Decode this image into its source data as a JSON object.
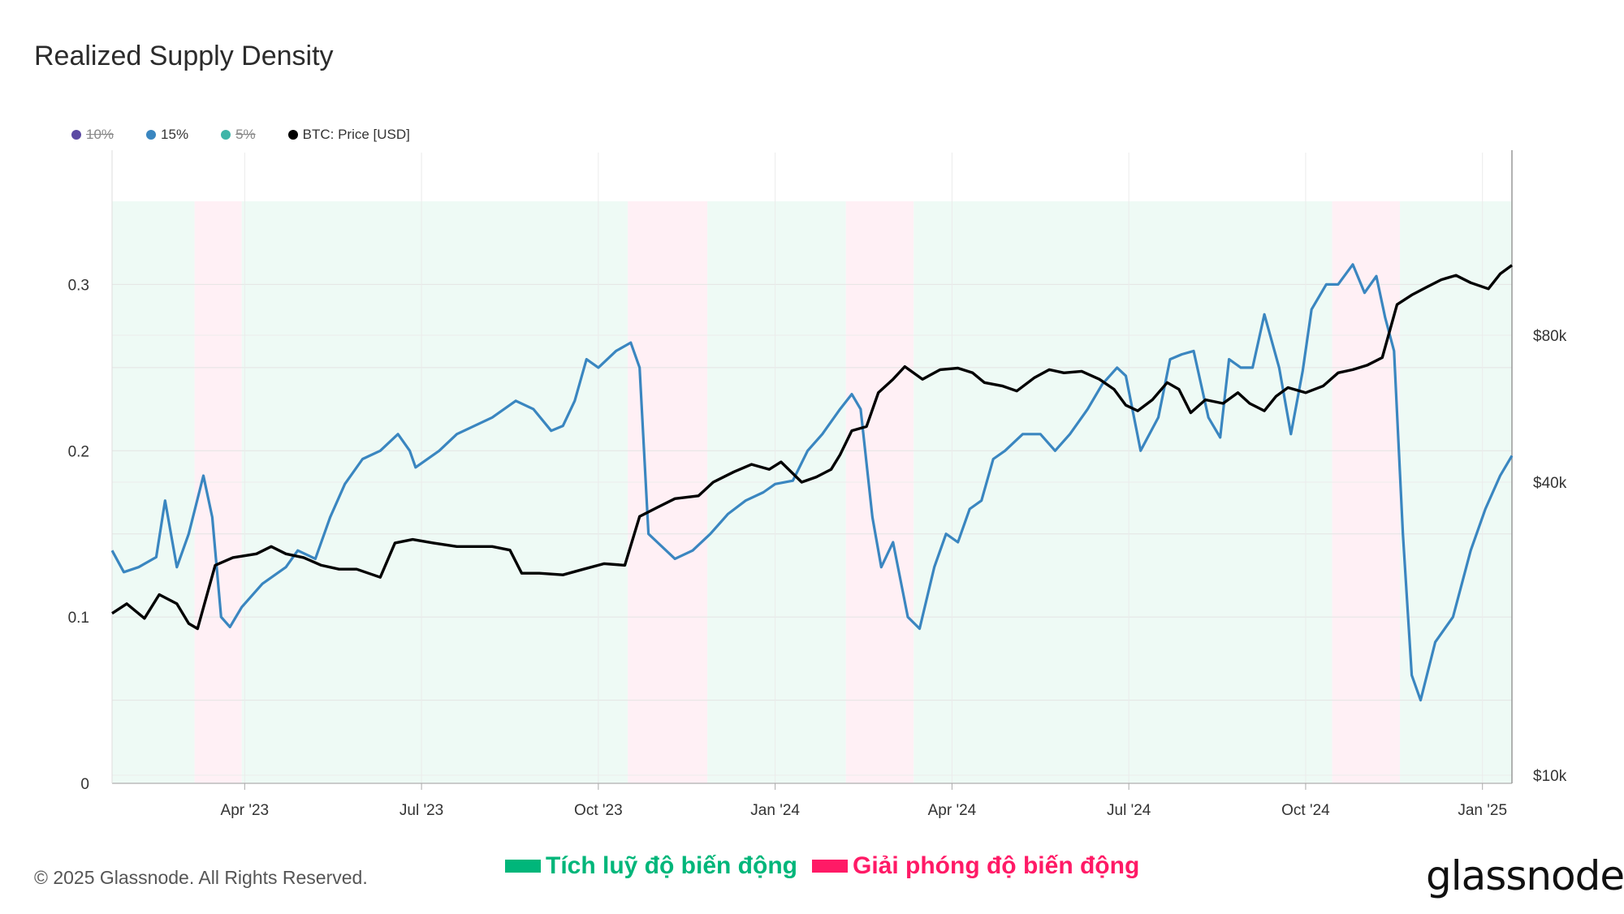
{
  "title": "Realized Supply Density",
  "legend": [
    {
      "label": "10%",
      "color": "#5b4aa3",
      "hidden": true
    },
    {
      "label": "15%",
      "color": "#3a86c0",
      "hidden": false
    },
    {
      "label": "5%",
      "color": "#3fb5a8",
      "hidden": true
    },
    {
      "label": "BTC: Price [USD]",
      "color": "#000000",
      "hidden": false
    }
  ],
  "footer": {
    "copyright": "© 2025 Glassnode. All Rights Reserved.",
    "logo": "glassnode"
  },
  "annotations": {
    "accumulation": {
      "label": "Tích luỹ độ biến động",
      "color": "#00b67a"
    },
    "release": {
      "label": "Giải phóng độ biến động",
      "color": "#ff1a66"
    }
  },
  "chart_data": {
    "type": "line",
    "title": "Realized Supply Density",
    "x_ticks": [
      "Apr '23",
      "Jul '23",
      "Oct '23",
      "Jan '24",
      "Apr '24",
      "Jul '24",
      "Oct '24",
      "Jan '25"
    ],
    "x_tick_months": [
      14.0,
      17.0,
      20.0,
      23.0,
      26.0,
      29.0,
      32.0,
      35.0
    ],
    "x_range_months": [
      11.75,
      35.5
    ],
    "y_left": {
      "ticks": [
        "0",
        "0.1",
        "0.2",
        "0.3"
      ],
      "tick_values": [
        0,
        0.1,
        0.2,
        0.3
      ],
      "range": [
        0,
        0.35
      ]
    },
    "y_right": {
      "ticks": [
        "$10k",
        "$40k",
        "$80k"
      ],
      "tick_values": [
        10000,
        40000,
        80000
      ],
      "scale": "nonlinear"
    },
    "regimes": [
      {
        "type": "accumulation",
        "start": 11.75,
        "end": 13.15
      },
      {
        "type": "release",
        "start": 13.15,
        "end": 13.95
      },
      {
        "type": "accumulation",
        "start": 13.95,
        "end": 20.5
      },
      {
        "type": "release",
        "start": 20.5,
        "end": 21.85
      },
      {
        "type": "accumulation",
        "start": 21.85,
        "end": 24.2
      },
      {
        "type": "release",
        "start": 24.2,
        "end": 25.35
      },
      {
        "type": "accumulation",
        "start": 25.35,
        "end": 32.45
      },
      {
        "type": "release",
        "start": 32.45,
        "end": 33.6
      },
      {
        "type": "accumulation",
        "start": 33.6,
        "end": 35.5
      }
    ],
    "series": [
      {
        "name": "15%",
        "axis": "left",
        "color": "#3a86c0",
        "points": [
          [
            11.75,
            0.14
          ],
          [
            11.95,
            0.127
          ],
          [
            12.2,
            0.13
          ],
          [
            12.5,
            0.136
          ],
          [
            12.65,
            0.17
          ],
          [
            12.85,
            0.13
          ],
          [
            13.05,
            0.15
          ],
          [
            13.3,
            0.185
          ],
          [
            13.45,
            0.16
          ],
          [
            13.6,
            0.1
          ],
          [
            13.75,
            0.094
          ],
          [
            13.95,
            0.106
          ],
          [
            14.3,
            0.12
          ],
          [
            14.7,
            0.13
          ],
          [
            14.9,
            0.14
          ],
          [
            15.2,
            0.135
          ],
          [
            15.45,
            0.16
          ],
          [
            15.7,
            0.18
          ],
          [
            16.0,
            0.195
          ],
          [
            16.3,
            0.2
          ],
          [
            16.6,
            0.21
          ],
          [
            16.8,
            0.2
          ],
          [
            16.9,
            0.19
          ],
          [
            17.3,
            0.2
          ],
          [
            17.6,
            0.21
          ],
          [
            17.9,
            0.215
          ],
          [
            18.2,
            0.22
          ],
          [
            18.6,
            0.23
          ],
          [
            18.9,
            0.225
          ],
          [
            19.2,
            0.212
          ],
          [
            19.4,
            0.215
          ],
          [
            19.6,
            0.23
          ],
          [
            19.8,
            0.255
          ],
          [
            20.0,
            0.25
          ],
          [
            20.3,
            0.26
          ],
          [
            20.55,
            0.265
          ],
          [
            20.7,
            0.25
          ],
          [
            20.85,
            0.15
          ],
          [
            21.0,
            0.145
          ],
          [
            21.3,
            0.135
          ],
          [
            21.6,
            0.14
          ],
          [
            21.9,
            0.15
          ],
          [
            22.2,
            0.162
          ],
          [
            22.5,
            0.17
          ],
          [
            22.8,
            0.175
          ],
          [
            23.0,
            0.18
          ],
          [
            23.3,
            0.182
          ],
          [
            23.55,
            0.2
          ],
          [
            23.8,
            0.21
          ],
          [
            24.1,
            0.225
          ],
          [
            24.3,
            0.234
          ],
          [
            24.45,
            0.225
          ],
          [
            24.65,
            0.16
          ],
          [
            24.8,
            0.13
          ],
          [
            25.0,
            0.145
          ],
          [
            25.25,
            0.1
          ],
          [
            25.45,
            0.093
          ],
          [
            25.7,
            0.13
          ],
          [
            25.9,
            0.15
          ],
          [
            26.1,
            0.145
          ],
          [
            26.3,
            0.165
          ],
          [
            26.5,
            0.17
          ],
          [
            26.7,
            0.195
          ],
          [
            26.9,
            0.2
          ],
          [
            27.2,
            0.21
          ],
          [
            27.5,
            0.21
          ],
          [
            27.75,
            0.2
          ],
          [
            28.0,
            0.21
          ],
          [
            28.3,
            0.225
          ],
          [
            28.55,
            0.24
          ],
          [
            28.8,
            0.25
          ],
          [
            28.95,
            0.245
          ],
          [
            29.2,
            0.2
          ],
          [
            29.5,
            0.22
          ],
          [
            29.7,
            0.255
          ],
          [
            29.9,
            0.258
          ],
          [
            30.1,
            0.26
          ],
          [
            30.35,
            0.22
          ],
          [
            30.55,
            0.208
          ],
          [
            30.7,
            0.255
          ],
          [
            30.9,
            0.25
          ],
          [
            31.1,
            0.25
          ],
          [
            31.3,
            0.282
          ],
          [
            31.55,
            0.25
          ],
          [
            31.75,
            0.21
          ],
          [
            31.95,
            0.248
          ],
          [
            32.1,
            0.285
          ],
          [
            32.35,
            0.3
          ],
          [
            32.55,
            0.3
          ],
          [
            32.8,
            0.312
          ],
          [
            33.0,
            0.295
          ],
          [
            33.2,
            0.305
          ],
          [
            33.35,
            0.28
          ],
          [
            33.5,
            0.26
          ],
          [
            33.65,
            0.15
          ],
          [
            33.8,
            0.065
          ],
          [
            33.95,
            0.05
          ],
          [
            34.2,
            0.085
          ],
          [
            34.5,
            0.1
          ],
          [
            34.8,
            0.14
          ],
          [
            35.05,
            0.165
          ],
          [
            35.3,
            0.185
          ],
          [
            35.5,
            0.197
          ]
        ]
      },
      {
        "name": "BTC: Price [USD]",
        "axis": "right",
        "color": "#000000",
        "points": [
          [
            11.75,
            21500
          ],
          [
            12.0,
            22500
          ],
          [
            12.3,
            21000
          ],
          [
            12.55,
            23500
          ],
          [
            12.85,
            22500
          ],
          [
            13.05,
            20500
          ],
          [
            13.2,
            20000
          ],
          [
            13.5,
            27000
          ],
          [
            13.8,
            28000
          ],
          [
            14.2,
            28500
          ],
          [
            14.45,
            29500
          ],
          [
            14.7,
            28500
          ],
          [
            15.0,
            28000
          ],
          [
            15.3,
            27000
          ],
          [
            15.6,
            26500
          ],
          [
            15.9,
            26500
          ],
          [
            16.3,
            25500
          ],
          [
            16.55,
            30000
          ],
          [
            16.85,
            30500
          ],
          [
            17.2,
            30000
          ],
          [
            17.6,
            29500
          ],
          [
            17.9,
            29500
          ],
          [
            18.2,
            29500
          ],
          [
            18.5,
            29000
          ],
          [
            18.7,
            26000
          ],
          [
            19.0,
            26000
          ],
          [
            19.4,
            25800
          ],
          [
            19.75,
            26500
          ],
          [
            20.1,
            27200
          ],
          [
            20.45,
            27000
          ],
          [
            20.7,
            34000
          ],
          [
            21.0,
            35500
          ],
          [
            21.3,
            37000
          ],
          [
            21.7,
            37500
          ],
          [
            21.95,
            40000
          ],
          [
            22.3,
            42000
          ],
          [
            22.6,
            43500
          ],
          [
            22.9,
            42500
          ],
          [
            23.1,
            44000
          ],
          [
            23.45,
            40000
          ],
          [
            23.7,
            41000
          ],
          [
            23.95,
            42500
          ],
          [
            24.1,
            45500
          ],
          [
            24.3,
            51000
          ],
          [
            24.55,
            52000
          ],
          [
            24.75,
            61000
          ],
          [
            25.0,
            65000
          ],
          [
            25.2,
            69000
          ],
          [
            25.5,
            65000
          ],
          [
            25.8,
            68000
          ],
          [
            26.1,
            68500
          ],
          [
            26.35,
            67000
          ],
          [
            26.55,
            64000
          ],
          [
            26.85,
            63000
          ],
          [
            27.1,
            61500
          ],
          [
            27.4,
            65500
          ],
          [
            27.65,
            68000
          ],
          [
            27.9,
            67000
          ],
          [
            28.2,
            67500
          ],
          [
            28.5,
            65000
          ],
          [
            28.75,
            62000
          ],
          [
            28.95,
            57500
          ],
          [
            29.15,
            56000
          ],
          [
            29.4,
            59000
          ],
          [
            29.65,
            64000
          ],
          [
            29.85,
            62000
          ],
          [
            30.05,
            55500
          ],
          [
            30.3,
            59000
          ],
          [
            30.6,
            58000
          ],
          [
            30.85,
            61000
          ],
          [
            31.05,
            58000
          ],
          [
            31.3,
            56000
          ],
          [
            31.5,
            60000
          ],
          [
            31.7,
            62500
          ],
          [
            32.0,
            61000
          ],
          [
            32.3,
            63000
          ],
          [
            32.55,
            67000
          ],
          [
            32.8,
            68000
          ],
          [
            33.05,
            69500
          ],
          [
            33.3,
            72000
          ],
          [
            33.55,
            89000
          ],
          [
            33.8,
            92000
          ],
          [
            34.05,
            94500
          ],
          [
            34.3,
            97000
          ],
          [
            34.55,
            98500
          ],
          [
            34.8,
            96000
          ],
          [
            35.1,
            94000
          ],
          [
            35.3,
            99000
          ],
          [
            35.5,
            102000
          ]
        ]
      }
    ]
  }
}
